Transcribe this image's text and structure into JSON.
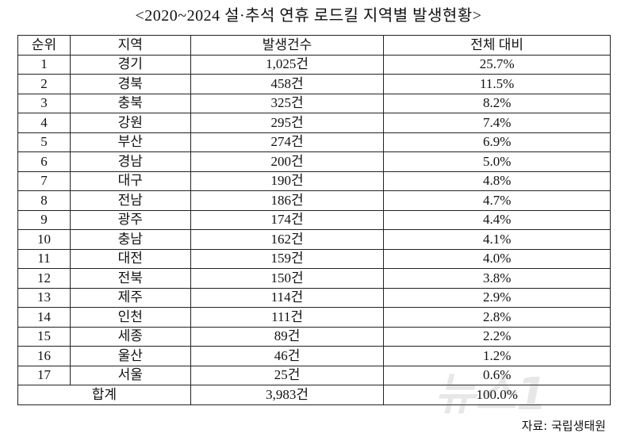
{
  "header": {
    "title": "<2020~2024 설·추석 연휴 로드킬 지역별 발생현황>"
  },
  "table": {
    "columns": [
      "순위",
      "지역",
      "발생건수",
      "전체 대비"
    ],
    "rows": [
      [
        "1",
        "경기",
        "1,025건",
        "25.7%"
      ],
      [
        "2",
        "경북",
        "458건",
        "11.5%"
      ],
      [
        "3",
        "충북",
        "325건",
        "8.2%"
      ],
      [
        "4",
        "강원",
        "295건",
        "7.4%"
      ],
      [
        "5",
        "부산",
        "274건",
        "6.9%"
      ],
      [
        "6",
        "경남",
        "200건",
        "5.0%"
      ],
      [
        "7",
        "대구",
        "190건",
        "4.8%"
      ],
      [
        "8",
        "전남",
        "186건",
        "4.7%"
      ],
      [
        "9",
        "광주",
        "174건",
        "4.4%"
      ],
      [
        "10",
        "충남",
        "162건",
        "4.1%"
      ],
      [
        "11",
        "대전",
        "159건",
        "4.0%"
      ],
      [
        "12",
        "전북",
        "150건",
        "3.8%"
      ],
      [
        "13",
        "제주",
        "114건",
        "2.9%"
      ],
      [
        "14",
        "인천",
        "111건",
        "2.8%"
      ],
      [
        "15",
        "세종",
        "89건",
        "2.2%"
      ],
      [
        "16",
        "울산",
        "46건",
        "1.2%"
      ],
      [
        "17",
        "서울",
        "25건",
        "0.6%"
      ]
    ],
    "total": [
      "합계",
      "3,983건",
      "100.0%"
    ]
  },
  "footer": {
    "source": "자료: 국립생태원",
    "watermark": "뉴스1"
  }
}
